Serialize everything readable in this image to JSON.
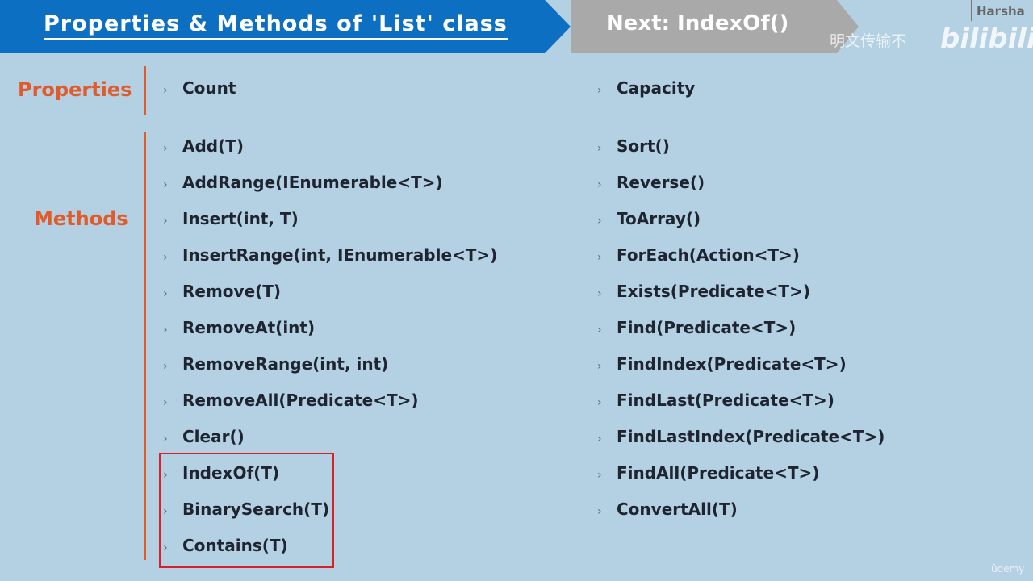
{
  "header": {
    "title": "Properties & Methods of 'List' class",
    "next": "Next: IndexOf()",
    "author": "Harsha"
  },
  "watermark": {
    "text": "明文传输不",
    "logo": "bilibili",
    "udemy": "ûdemy"
  },
  "sections": {
    "properties": "Properties",
    "methods": "Methods"
  },
  "properties": {
    "left": [
      "Count"
    ],
    "right": [
      "Capacity"
    ]
  },
  "methods": {
    "left": [
      "Add(T)",
      "AddRange(IEnumerable<T>)",
      "Insert(int, T)",
      "InsertRange(int, IEnumerable<T>)",
      "Remove(T)",
      "RemoveAt(int)",
      "RemoveRange(int, int)",
      "RemoveAll(Predicate<T>)",
      "Clear()",
      "IndexOf(T)",
      "BinarySearch(T)",
      "Contains(T)"
    ],
    "right": [
      "Sort()",
      "Reverse()",
      "ToArray()",
      "ForEach(Action<T>)",
      "Exists(Predicate<T>)",
      "Find(Predicate<T>)",
      "FindIndex(Predicate<T>)",
      "FindLast(Predicate<T>)",
      "FindLastIndex(Predicate<T>)",
      "FindAll(Predicate<T>)",
      "ConvertAll(T)"
    ]
  },
  "highlight": {
    "items": [
      "IndexOf(T)",
      "BinarySearch(T)",
      "Contains(T)"
    ],
    "color": "#d8202a"
  },
  "colors": {
    "background": "#b4d0e3",
    "banner": "#0d6fc1",
    "next": "#a9a9a9",
    "accent": "#e05a2a"
  }
}
